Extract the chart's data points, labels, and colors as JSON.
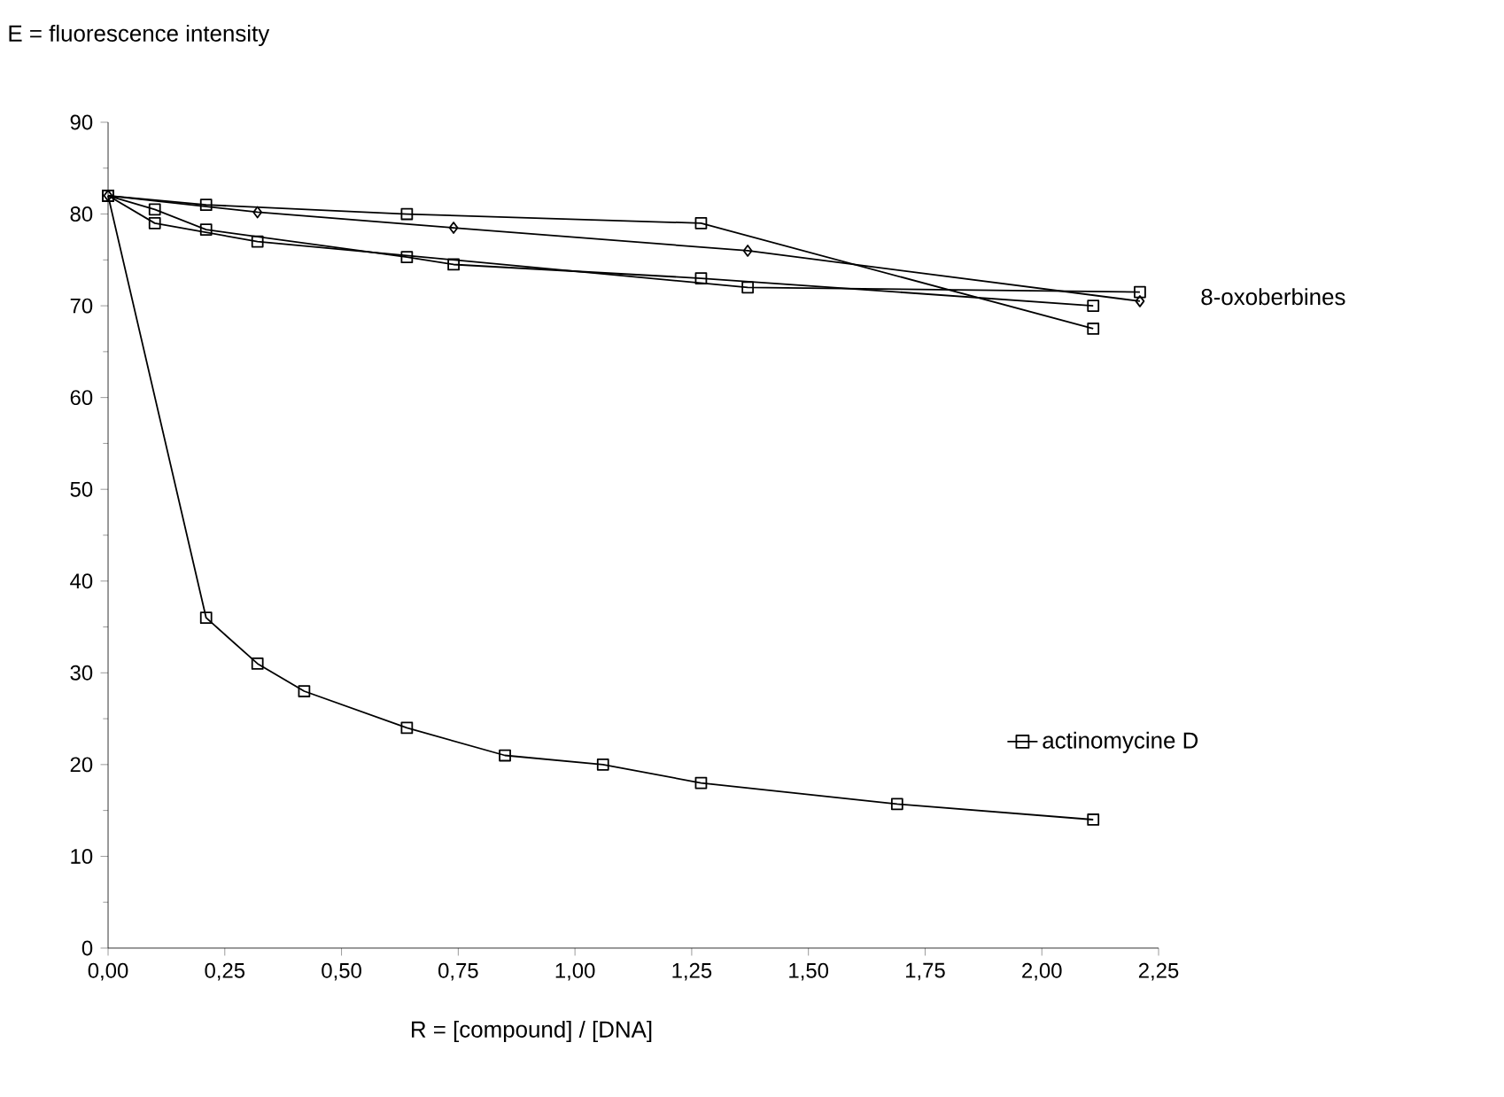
{
  "chart_data": {
    "type": "line",
    "xlabel": "R = [compound] / [DNA]",
    "ylabel": "E = fluorescence intensity",
    "xlim": [
      0,
      2.25
    ],
    "ylim": [
      0,
      90
    ],
    "xticks": [
      {
        "value": 0,
        "label": "0,00"
      },
      {
        "value": 0.25,
        "label": "0,25"
      },
      {
        "value": 0.5,
        "label": "0,50"
      },
      {
        "value": 0.75,
        "label": "0,75"
      },
      {
        "value": 1,
        "label": "1,00"
      },
      {
        "value": 1.25,
        "label": "1,25"
      },
      {
        "value": 1.5,
        "label": "1,50"
      },
      {
        "value": 1.75,
        "label": "1,75"
      },
      {
        "value": 2,
        "label": "2,00"
      },
      {
        "value": 2.25,
        "label": "2,25"
      }
    ],
    "yticks": [
      0,
      10,
      20,
      30,
      40,
      50,
      60,
      70,
      80,
      90
    ],
    "grid": false,
    "legend": "right",
    "annotations": [
      {
        "text": "8-oxoberbines",
        "x": 2.21,
        "y": 71
      }
    ],
    "series": [
      {
        "color": "#000000",
        "marker": "diamond",
        "x": [
          0,
          0.32,
          0.74,
          1.37,
          2.21
        ],
        "values": [
          82,
          80.2,
          78.5,
          76,
          70.5
        ]
      },
      {
        "color": "#000000",
        "marker": "square",
        "x": [
          0,
          0.21,
          0.64,
          1.27,
          2.11
        ],
        "values": [
          82,
          81,
          80,
          79,
          67.5
        ]
      },
      {
        "color": "#000000",
        "marker": "square",
        "x": [
          0,
          0.1,
          0.21,
          0.64,
          0.74,
          1.27,
          2.11
        ],
        "values": [
          82,
          80.5,
          78.3,
          75.3,
          74.5,
          73,
          70
        ]
      },
      {
        "color": "#000000",
        "marker": "square",
        "x": [
          0,
          0.1,
          0.32,
          1.37,
          2.21
        ],
        "values": [
          82,
          79,
          77,
          72,
          71.5
        ]
      },
      {
        "name": "actinomycine D",
        "color": "#000000",
        "marker": "square",
        "x": [
          0,
          0.21,
          0.32,
          0.42,
          0.64,
          0.85,
          1.06,
          1.27,
          1.69,
          2.11
        ],
        "values": [
          82,
          36,
          31,
          28,
          24,
          21,
          20,
          18,
          15.7,
          14
        ]
      }
    ]
  }
}
